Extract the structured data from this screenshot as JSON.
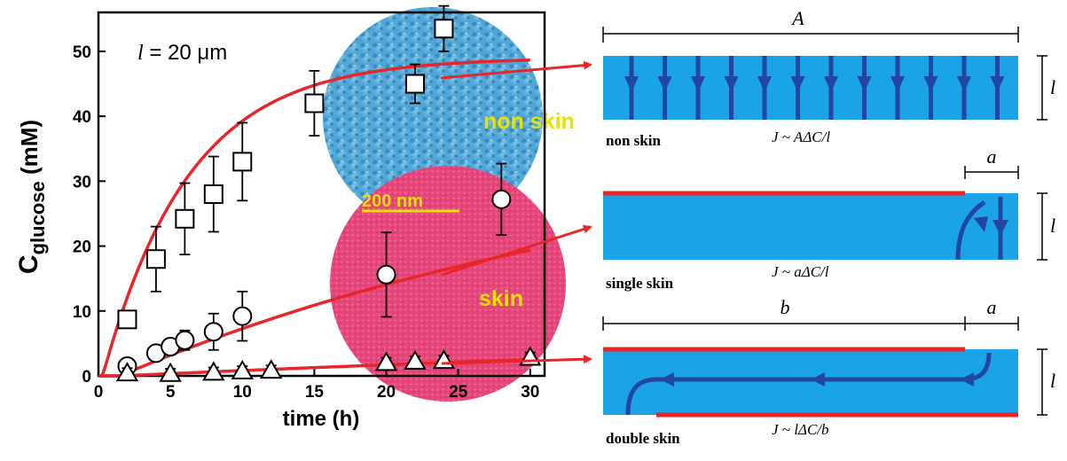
{
  "chart_data": {
    "type": "scatter",
    "annotation": {
      "symbol": "l",
      "text": " = 20 μm"
    },
    "xlabel": "time (h)",
    "ylabel": {
      "main": "C",
      "sub": "glucose",
      "unit": " (mM)"
    },
    "xlim": [
      0,
      31
    ],
    "ylim": [
      0,
      56
    ],
    "xticks": [
      0,
      5,
      10,
      15,
      20,
      25,
      30
    ],
    "yticks": [
      0,
      10,
      20,
      30,
      40,
      50
    ],
    "grid": false,
    "legend": "none",
    "series": [
      {
        "marker": "square",
        "fit_color": "#e8262a",
        "points": [
          {
            "x": 2,
            "y": 8.7,
            "err": 0
          },
          {
            "x": 4,
            "y": 18,
            "err": 5
          },
          {
            "x": 6,
            "y": 24.2,
            "err": 5.5
          },
          {
            "x": 8,
            "y": 28,
            "err": 5.8
          },
          {
            "x": 10,
            "y": 33,
            "err": 6
          },
          {
            "x": 15,
            "y": 42,
            "err": 5
          },
          {
            "x": 22,
            "y": 45,
            "err": 3
          },
          {
            "x": 24,
            "y": 53.5,
            "err": 3.5
          }
        ],
        "fit": {
          "a": 49,
          "tau": 6.0,
          "x0": 0.3
        }
      },
      {
        "marker": "circle",
        "fit_color": "#e8262a",
        "points": [
          {
            "x": 2,
            "y": 1.5,
            "err": 1
          },
          {
            "x": 4,
            "y": 3.5,
            "err": 1
          },
          {
            "x": 5,
            "y": 4.5,
            "err": 1.2
          },
          {
            "x": 6,
            "y": 5.5,
            "err": 1.5
          },
          {
            "x": 8,
            "y": 6.8,
            "err": 2.8
          },
          {
            "x": 10,
            "y": 9.2,
            "err": 3.8
          },
          {
            "x": 20,
            "y": 15.6,
            "err": 6.5
          },
          {
            "x": 28,
            "y": 27.2,
            "err": 5.5
          }
        ],
        "fit": {
          "a": 38,
          "tau": 40,
          "x0": 1.5
        }
      },
      {
        "marker": "triangle",
        "fit_color": "#e8262a",
        "points": [
          {
            "x": 2,
            "y": 0.4,
            "err": 0.8
          },
          {
            "x": 5,
            "y": 0.3,
            "err": 0.8
          },
          {
            "x": 8,
            "y": 0.5,
            "err": 0.8
          },
          {
            "x": 10,
            "y": 0.7,
            "err": 0.8
          },
          {
            "x": 12,
            "y": 0.8,
            "err": 0.8
          },
          {
            "x": 20,
            "y": 2.0,
            "err": 0.8
          },
          {
            "x": 22,
            "y": 2.2,
            "err": 0.8
          },
          {
            "x": 24,
            "y": 2.3,
            "err": 0.8
          },
          {
            "x": 30,
            "y": 2.8,
            "err": 0.8
          }
        ],
        "fit": {
          "a": 12,
          "tau": 120,
          "x0": 1.5
        }
      }
    ],
    "insets": {
      "nonskin_label": "non skin",
      "skin_label": "skin",
      "scale_bar": "200  nm",
      "label_color": "#e9e100"
    }
  },
  "diagrams": {
    "colors": {
      "membrane": "#1aa3e6",
      "arrow": "#2347a0",
      "skin": "#e8262a"
    },
    "top": {
      "dim": "A",
      "thickness": "l",
      "caption": "non skin",
      "eq": "J ~ AΔC/l"
    },
    "middle": {
      "dim": "a",
      "thickness": "l",
      "caption": "single skin",
      "eq": "J ~ aΔC/l"
    },
    "bottom": {
      "dim_left": "b",
      "dim_right": "a",
      "thickness": "l",
      "caption": "double skin",
      "eq": "J ~ lΔC/b"
    }
  }
}
